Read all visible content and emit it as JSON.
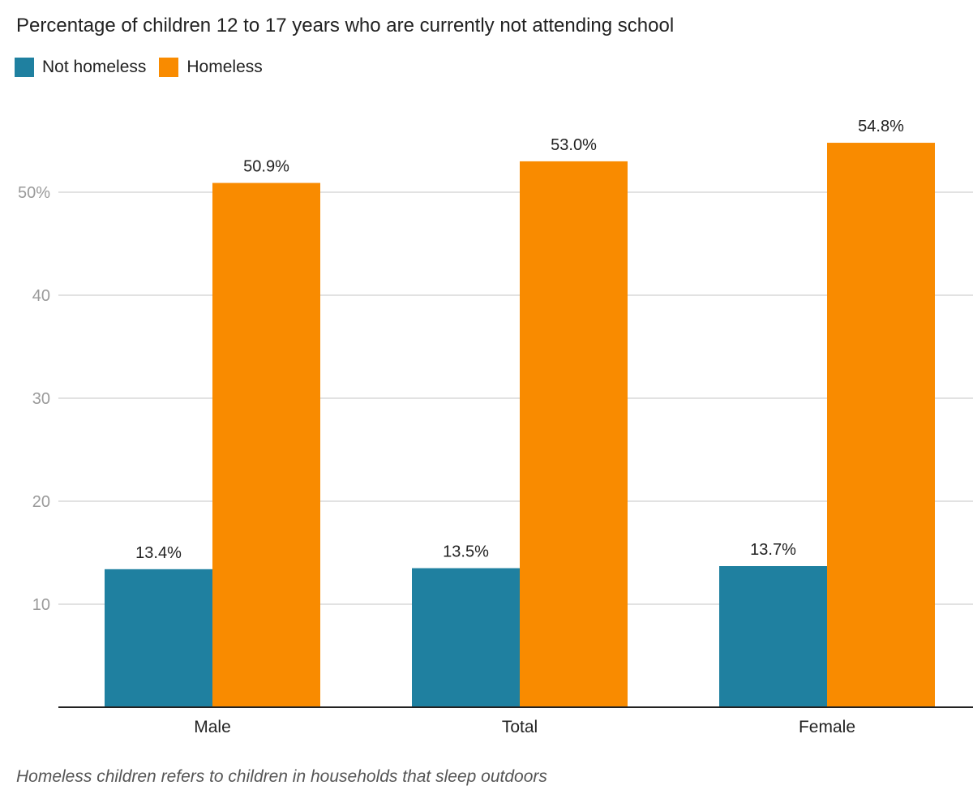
{
  "chart_data": {
    "type": "bar",
    "title": "Percentage of children 12 to 17 years who are currently not attending school",
    "categories": [
      "Male",
      "Total",
      "Female"
    ],
    "series": [
      {
        "name": "Not homeless",
        "color": "#1f80a0",
        "values": [
          13.4,
          13.5,
          13.7
        ],
        "labels": [
          "13.4%",
          "13.5%",
          "13.7%"
        ]
      },
      {
        "name": "Homeless",
        "color": "#f98b00",
        "values": [
          50.9,
          53.0,
          54.8
        ],
        "labels": [
          "50.9%",
          "53.0%",
          "54.8%"
        ]
      }
    ],
    "xlabel": "",
    "ylabel": "",
    "ylim": [
      0,
      56
    ],
    "yticks": [
      10,
      20,
      30,
      40,
      50
    ],
    "ytick_labels": [
      "10",
      "20",
      "30",
      "40",
      "50%"
    ],
    "grid": true,
    "legend": "top-left",
    "note": "Homeless children refers to children in households that sleep outdoors"
  }
}
